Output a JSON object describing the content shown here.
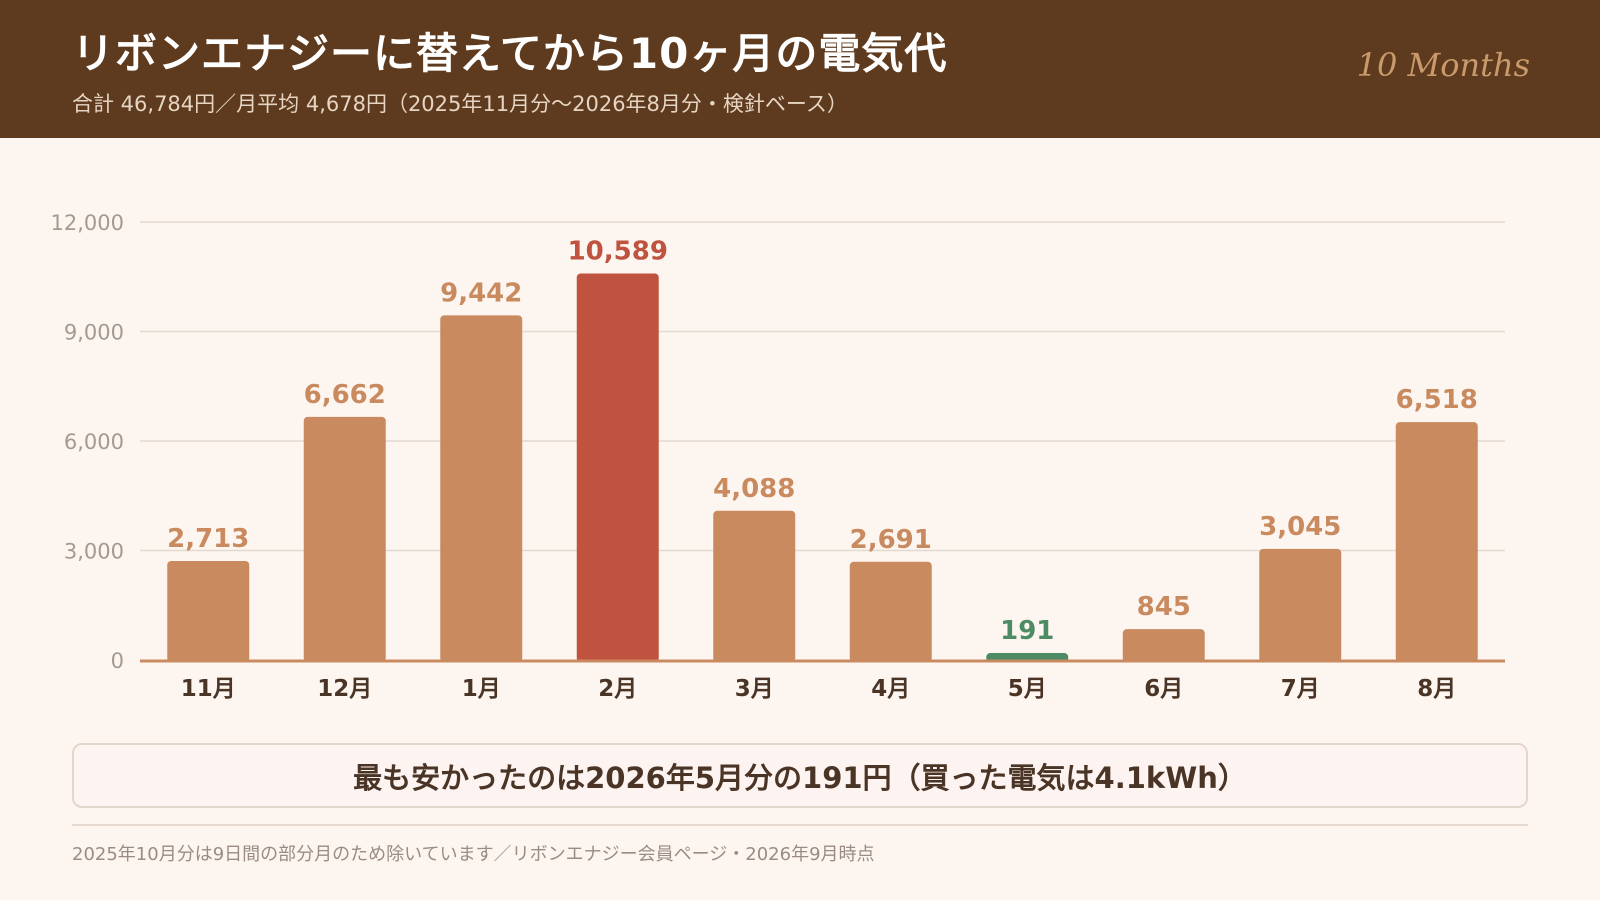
{
  "header": {
    "title": "リボンエナジーに替えてから10ヶ月の電気代",
    "subtitle": "合計 46,784円／月平均 4,678円（2025年11月分〜2026年8月分・検針ベース）",
    "badge": "10 Months"
  },
  "chart_data": {
    "type": "bar",
    "title": "",
    "xlabel": "",
    "ylabel": "",
    "categories": [
      "11月",
      "12月",
      "1月",
      "2月",
      "3月",
      "4月",
      "5月",
      "6月",
      "7月",
      "8月"
    ],
    "series": [
      {
        "values": [
          2713,
          6662,
          9442,
          10589,
          4088,
          2691,
          191,
          845,
          3045,
          6518
        ]
      }
    ],
    "data_labels": [
      "2,713",
      "6,662",
      "9,442",
      "10,589",
      "4,088",
      "2,691",
      "191",
      "845",
      "3,045",
      "6,518"
    ],
    "ylim": [
      0,
      12000
    ],
    "yticks": [
      0,
      3000,
      6000,
      9000,
      12000
    ],
    "ytick_labels": [
      "0",
      "3,000",
      "6,000",
      "9,000",
      "12,000"
    ],
    "grid": true,
    "highlight": {
      "max_index": 3,
      "min_index": 6
    },
    "colors": {
      "bar": "#c98a5f",
      "max": "#c0533f",
      "min": "#4c8b64",
      "axis": "#c98a5f",
      "grid": "#e3d9d0",
      "tick_text": "#a49a91",
      "category_text": "#4a3426"
    }
  },
  "callout": {
    "text": "最も安かったのは2026年5月分の191円（買った電気は4.1kWh）"
  },
  "footnote": {
    "text": "2025年10月分は9日間の部分月のため除いています／リボンエナジー会員ページ・2026年9月時点"
  }
}
